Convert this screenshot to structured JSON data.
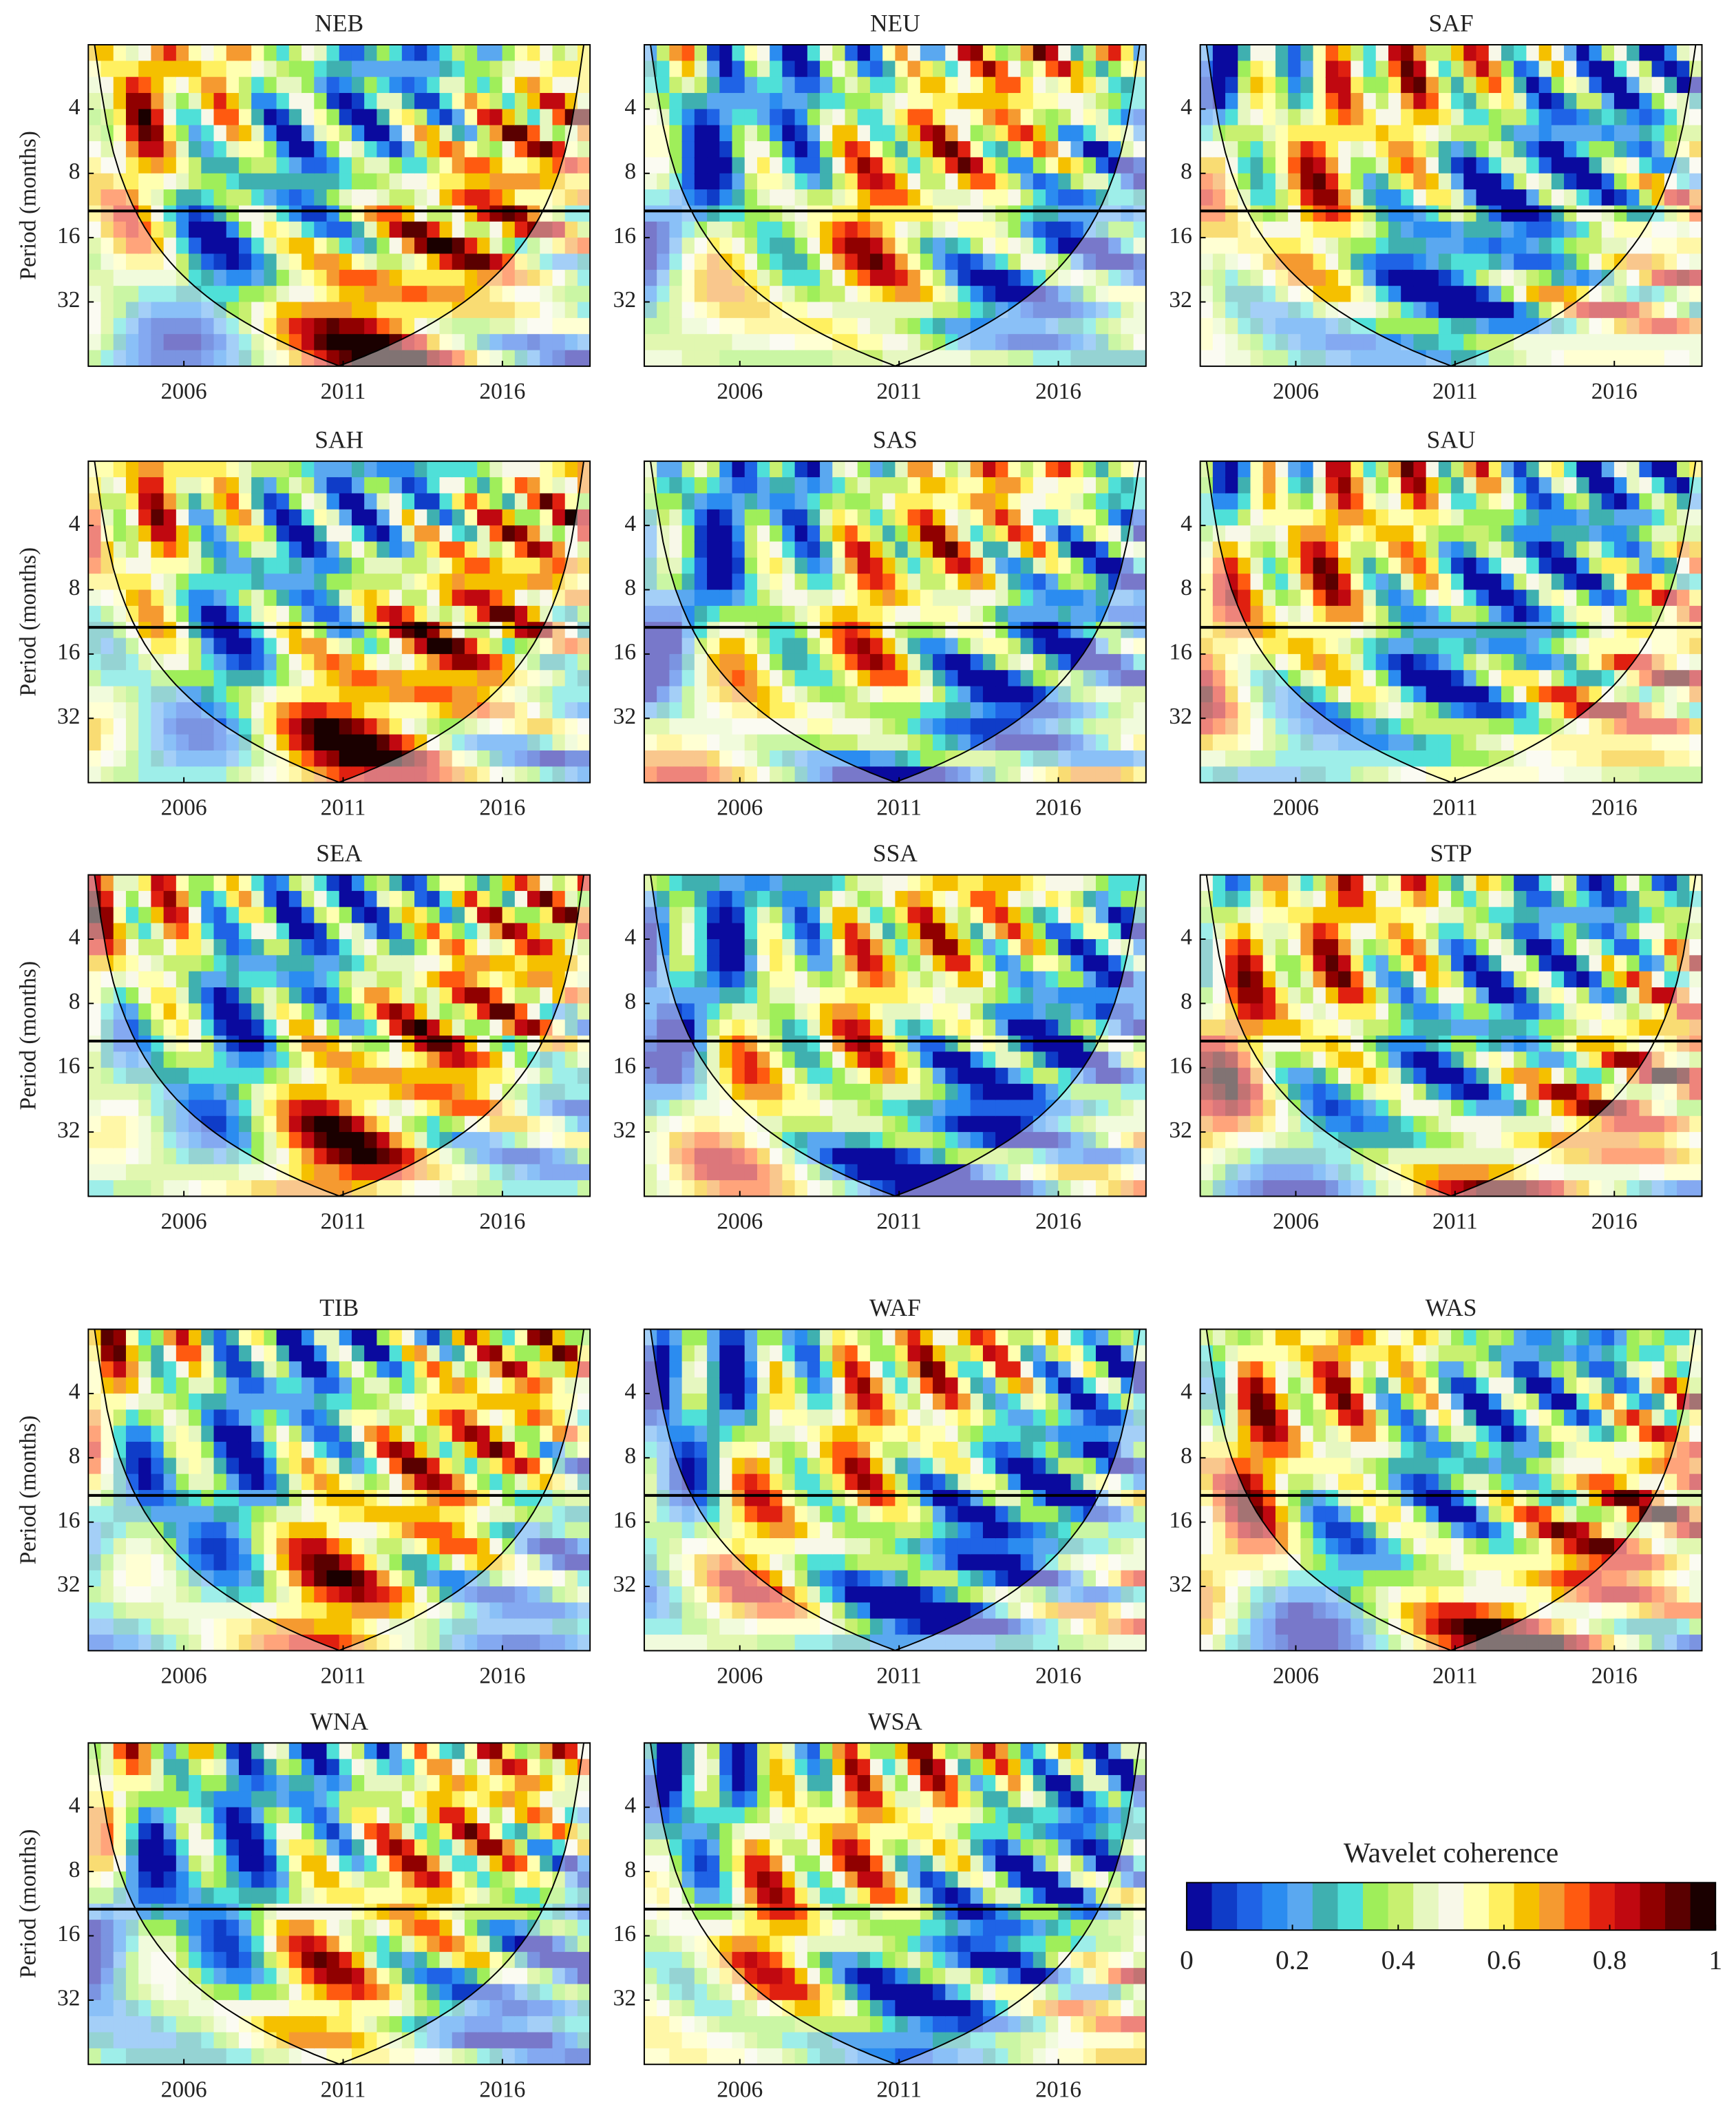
{
  "chart_data": [
    {
      "type": "heatmap",
      "title": "NEB",
      "y_label": "Period (months)",
      "ylim": [
        2,
        64
      ],
      "yticks": [
        4,
        8,
        16,
        32
      ],
      "y_log2": true,
      "y_reversed": true,
      "xlim": [
        2003,
        2018.75
      ],
      "xticks": [
        2006,
        2011,
        2016
      ],
      "hline": 12
    },
    {
      "type": "heatmap",
      "title": "NEU",
      "ylim": [
        2,
        64
      ],
      "yticks": [
        4,
        8,
        16,
        32
      ],
      "y_log2": true,
      "y_reversed": true,
      "xlim": [
        2003,
        2018.75
      ],
      "xticks": [
        2006,
        2011,
        2016
      ],
      "hline": 12
    },
    {
      "type": "heatmap",
      "title": "SAF",
      "ylim": [
        2,
        64
      ],
      "yticks": [
        4,
        8,
        16,
        32
      ],
      "y_log2": true,
      "y_reversed": true,
      "xlim": [
        2003,
        2018.75
      ],
      "xticks": [
        2006,
        2011,
        2016
      ],
      "hline": 12
    },
    {
      "type": "heatmap",
      "title": "SAH",
      "y_label": "Period (months)",
      "ylim": [
        2,
        64
      ],
      "yticks": [
        4,
        8,
        16,
        32
      ],
      "y_log2": true,
      "y_reversed": true,
      "xlim": [
        2003,
        2018.75
      ],
      "xticks": [
        2006,
        2011,
        2016
      ],
      "hline": 12
    },
    {
      "type": "heatmap",
      "title": "SAS",
      "ylim": [
        2,
        64
      ],
      "yticks": [
        4,
        8,
        16,
        32
      ],
      "y_log2": true,
      "y_reversed": true,
      "xlim": [
        2003,
        2018.75
      ],
      "xticks": [
        2006,
        2011,
        2016
      ],
      "hline": 12
    },
    {
      "type": "heatmap",
      "title": "SAU",
      "ylim": [
        2,
        64
      ],
      "yticks": [
        4,
        8,
        16,
        32
      ],
      "y_log2": true,
      "y_reversed": true,
      "xlim": [
        2003,
        2018.75
      ],
      "xticks": [
        2006,
        2011,
        2016
      ],
      "hline": 12
    },
    {
      "type": "heatmap",
      "title": "SEA",
      "y_label": "Period (months)",
      "ylim": [
        2,
        64
      ],
      "yticks": [
        4,
        8,
        16,
        32
      ],
      "y_log2": true,
      "y_reversed": true,
      "xlim": [
        2003,
        2018.75
      ],
      "xticks": [
        2006,
        2011,
        2016
      ],
      "hline": 12
    },
    {
      "type": "heatmap",
      "title": "SSA",
      "ylim": [
        2,
        64
      ],
      "yticks": [
        4,
        8,
        16,
        32
      ],
      "y_log2": true,
      "y_reversed": true,
      "xlim": [
        2003,
        2018.75
      ],
      "xticks": [
        2006,
        2011,
        2016
      ],
      "hline": 12
    },
    {
      "type": "heatmap",
      "title": "STP",
      "ylim": [
        2,
        64
      ],
      "yticks": [
        4,
        8,
        16,
        32
      ],
      "y_log2": true,
      "y_reversed": true,
      "xlim": [
        2003,
        2018.75
      ],
      "xticks": [
        2006,
        2011,
        2016
      ],
      "hline": 12
    },
    {
      "type": "heatmap",
      "title": "TIB",
      "y_label": "Period (months)",
      "ylim": [
        2,
        64
      ],
      "yticks": [
        4,
        8,
        16,
        32
      ],
      "y_log2": true,
      "y_reversed": true,
      "xlim": [
        2003,
        2018.75
      ],
      "xticks": [
        2006,
        2011,
        2016
      ],
      "hline": 12
    },
    {
      "type": "heatmap",
      "title": "WAF",
      "ylim": [
        2,
        64
      ],
      "yticks": [
        4,
        8,
        16,
        32
      ],
      "y_log2": true,
      "y_reversed": true,
      "xlim": [
        2003,
        2018.75
      ],
      "xticks": [
        2006,
        2011,
        2016
      ],
      "hline": 12
    },
    {
      "type": "heatmap",
      "title": "WAS",
      "ylim": [
        2,
        64
      ],
      "yticks": [
        4,
        8,
        16,
        32
      ],
      "y_log2": true,
      "y_reversed": true,
      "xlim": [
        2003,
        2018.75
      ],
      "xticks": [
        2006,
        2011,
        2016
      ],
      "hline": 12
    },
    {
      "type": "heatmap",
      "title": "WNA",
      "y_label": "Period (months)",
      "ylim": [
        2,
        64
      ],
      "yticks": [
        4,
        8,
        16,
        32
      ],
      "y_log2": true,
      "y_reversed": true,
      "xlim": [
        2003,
        2018.75
      ],
      "xticks": [
        2006,
        2011,
        2016
      ],
      "hline": 12
    },
    {
      "type": "heatmap",
      "title": "WSA",
      "ylim": [
        2,
        64
      ],
      "yticks": [
        4,
        8,
        16,
        32
      ],
      "y_log2": true,
      "y_reversed": true,
      "xlim": [
        2003,
        2018.75
      ],
      "xticks": [
        2006,
        2011,
        2016
      ],
      "hline": 12
    },
    {
      "type": "colorbar",
      "title": "Wavelet coherence",
      "xlim": [
        0,
        1
      ],
      "xticks": [
        0,
        0.2,
        0.4,
        0.6,
        0.8,
        1
      ],
      "colors": [
        "#0a0a9e",
        "#0f3cc8",
        "#1f63e6",
        "#2b8cf0",
        "#5aa8f0",
        "#3fb0b0",
        "#4fe0d8",
        "#9fee5a",
        "#c8f070",
        "#e6f7c0",
        "#f8f8e8",
        "#ffffb0",
        "#fff060",
        "#f5c000",
        "#f59a30",
        "#ff5a10",
        "#e02010",
        "#c00810",
        "#900000",
        "#5a0000",
        "#1a0000"
      ]
    }
  ]
}
